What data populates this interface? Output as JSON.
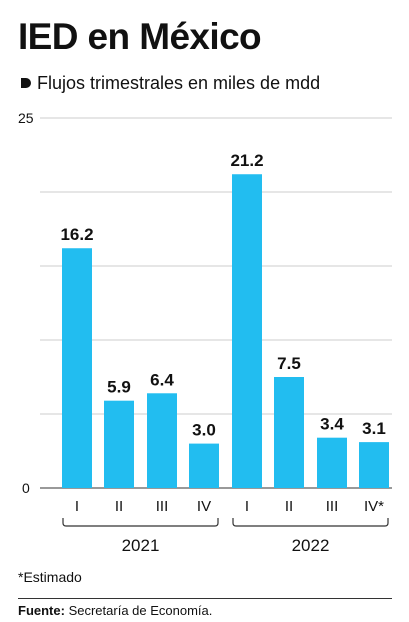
{
  "title": "IED en México",
  "subtitle": "Flujos trimestrales en miles de mdd",
  "note": "*Estimado",
  "source_label": "Fuente:",
  "source_text": "Secretaría de Economía.",
  "colors": {
    "bar": "#22bdf0",
    "text": "#111111",
    "grid": "#cccccc",
    "axis": "#333333"
  },
  "chart_data": {
    "type": "bar",
    "ylim": [
      0,
      25
    ],
    "y_ticks": [
      "0",
      "25"
    ],
    "grid": true,
    "categories": [
      "I",
      "II",
      "III",
      "IV",
      "I",
      "II",
      "III",
      "IV*"
    ],
    "values": [
      16.2,
      5.9,
      6.4,
      3.0,
      21.2,
      7.5,
      3.4,
      3.1
    ],
    "value_labels": [
      "16.2",
      "5.9",
      "6.4",
      "3.0",
      "21.2",
      "7.5",
      "3.4",
      "3.1"
    ],
    "groups": [
      {
        "label": "2021",
        "count": 4
      },
      {
        "label": "2022",
        "count": 4
      }
    ]
  }
}
